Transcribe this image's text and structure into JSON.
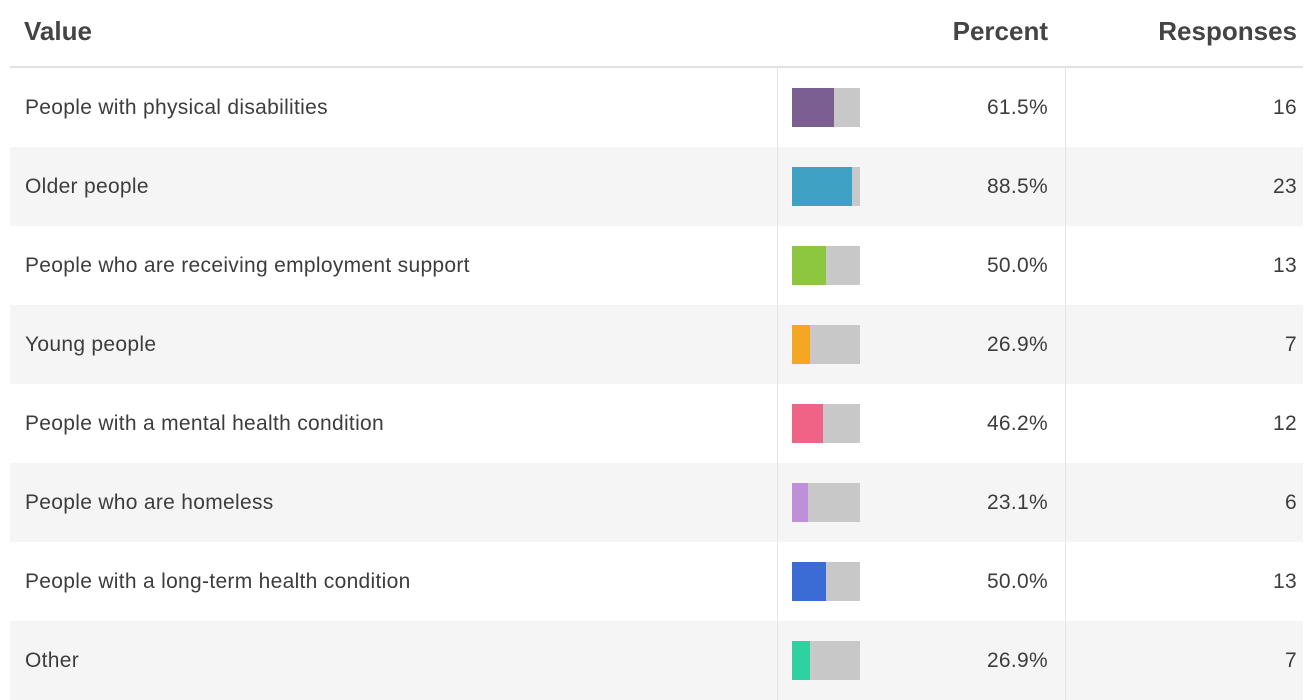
{
  "table": {
    "header": {
      "value": "Value",
      "percent": "Percent",
      "responses": "Responses"
    },
    "percent_range": [
      0,
      100
    ],
    "track_color": "#c8c8c8",
    "rows": [
      {
        "value": "People with physical disabilities",
        "percent": 61.5,
        "percent_label": "61.5%",
        "responses": 16,
        "color": "#7b5f93"
      },
      {
        "value": "Older people",
        "percent": 88.5,
        "percent_label": "88.5%",
        "responses": 23,
        "color": "#3fa2c4"
      },
      {
        "value": "People who are receiving employment support",
        "percent": 50.0,
        "percent_label": "50.0%",
        "responses": 13,
        "color": "#8dc63f"
      },
      {
        "value": "Young people",
        "percent": 26.9,
        "percent_label": "26.9%",
        "responses": 7,
        "color": "#f5a623"
      },
      {
        "value": "People with a mental health condition",
        "percent": 46.2,
        "percent_label": "46.2%",
        "responses": 12,
        "color": "#f06386"
      },
      {
        "value": "People who are homeless",
        "percent": 23.1,
        "percent_label": "23.1%",
        "responses": 6,
        "color": "#c08fdc"
      },
      {
        "value": "People with a long-term health condition",
        "percent": 50.0,
        "percent_label": "50.0%",
        "responses": 13,
        "color": "#3b6bd4"
      },
      {
        "value": "Other",
        "percent": 26.9,
        "percent_label": "26.9%",
        "responses": 7,
        "color": "#2fd1a0"
      }
    ]
  }
}
